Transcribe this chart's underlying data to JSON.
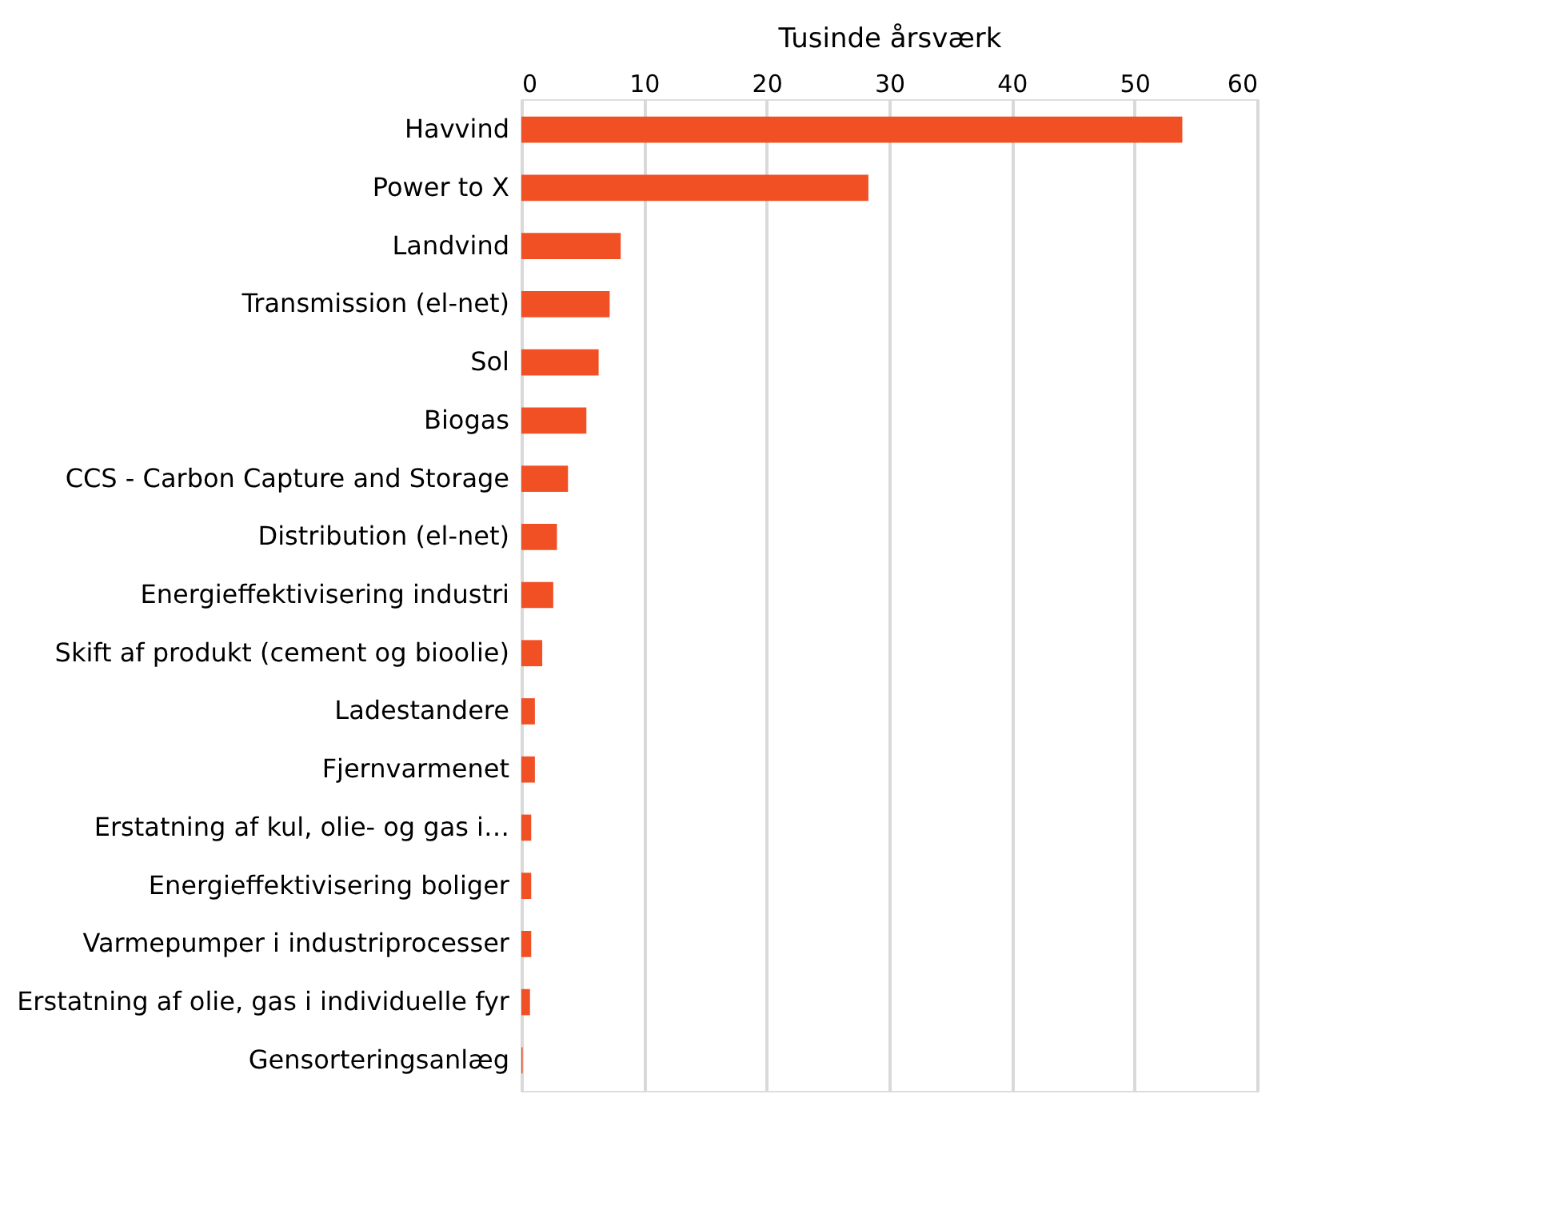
{
  "chart_data": {
    "type": "bar",
    "orientation": "horizontal",
    "xlabel": "Tusinde årsværk",
    "categories": [
      "Havvind",
      "Power to X",
      "Landvind",
      "Transmission (el-net)",
      "Sol",
      "Biogas",
      "CCS - Carbon Capture and Storage",
      "Distribution (el-net)",
      "Energieffektivisering industri",
      "Skift af produkt (cement og bioolie)",
      "Ladestandere",
      "Fjernvarmenet",
      "Erstatning af kul, olie- og gas i…",
      "Energieffektivisering boliger",
      "Varmepumper i industriprocesser",
      "Erstatning af olie, gas i individuelle fyr",
      "Gensorteringsanlæg"
    ],
    "values": [
      53.9,
      28.3,
      8.1,
      7.2,
      6.3,
      5.3,
      3.8,
      2.9,
      2.6,
      1.7,
      1.1,
      1.1,
      0.8,
      0.8,
      0.8,
      0.7,
      0.1
    ],
    "color": "#f15025",
    "xlim": [
      0,
      60
    ],
    "xticks": [
      0,
      10,
      20,
      30,
      40,
      50,
      60
    ],
    "grid": "x"
  }
}
